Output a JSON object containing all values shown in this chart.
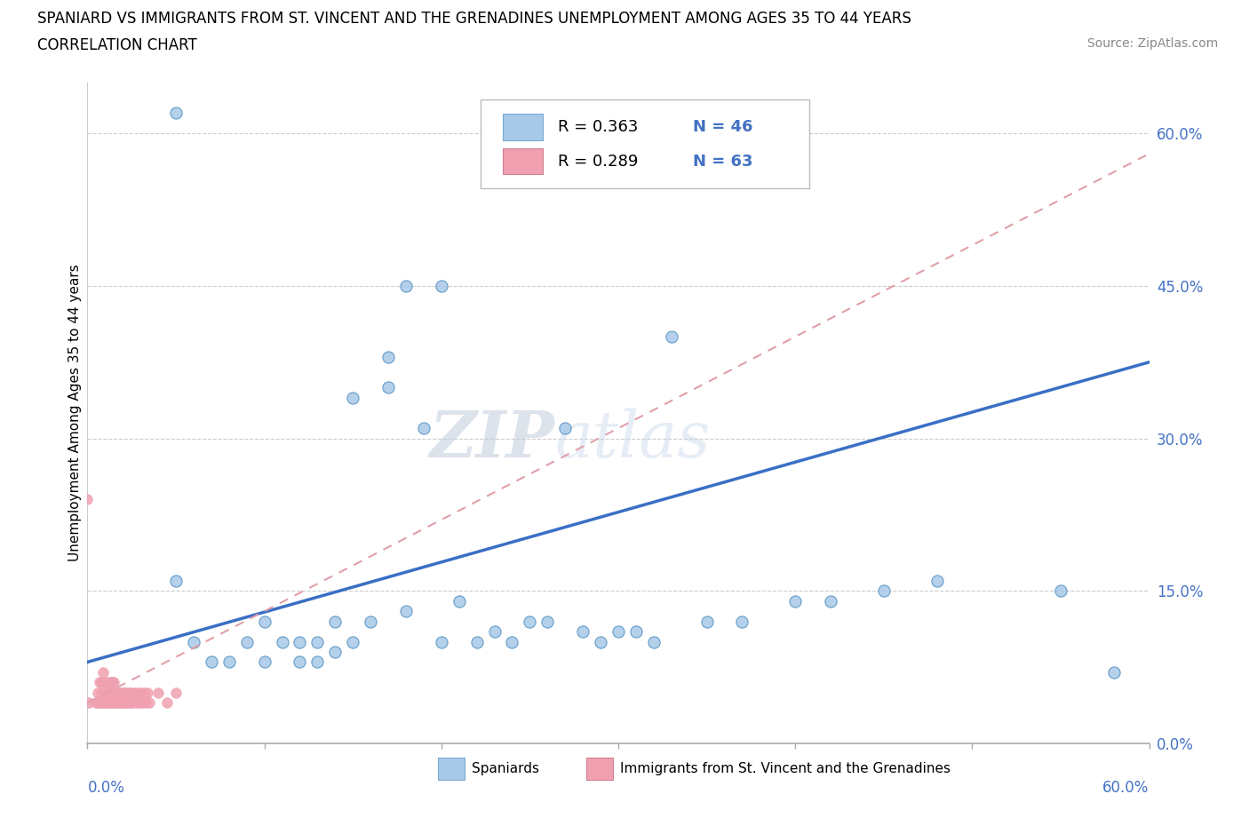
{
  "title_line1": "SPANIARD VS IMMIGRANTS FROM ST. VINCENT AND THE GRENADINES UNEMPLOYMENT AMONG AGES 35 TO 44 YEARS",
  "title_line2": "CORRELATION CHART",
  "source": "Source: ZipAtlas.com",
  "ylabel_label": "Unemployment Among Ages 35 to 44 years",
  "watermark_zip": "ZIP",
  "watermark_atlas": "atlas",
  "legend_R1": "R = 0.363",
  "legend_N1": "N = 46",
  "legend_R2": "R = 0.289",
  "legend_N2": "N = 63",
  "blue_color": "#A8C8E8",
  "pink_color": "#F0A0B0",
  "trendline_blue": "#3A6FC4",
  "trendline_pink_color": "#E0A0A8",
  "axis_label_color": "#4472C4",
  "blue_trendline_x0": 0.0,
  "blue_trendline_y0": 0.08,
  "blue_trendline_x1": 0.6,
  "blue_trendline_y1": 0.375,
  "pink_trendline_x0": 0.0,
  "pink_trendline_y0": 0.04,
  "pink_trendline_x1": 0.6,
  "pink_trendline_y1": 0.58,
  "spaniards_x": [
    0.05,
    0.05,
    0.06,
    0.07,
    0.08,
    0.09,
    0.1,
    0.1,
    0.11,
    0.12,
    0.12,
    0.13,
    0.13,
    0.14,
    0.14,
    0.15,
    0.15,
    0.16,
    0.17,
    0.17,
    0.18,
    0.18,
    0.19,
    0.2,
    0.2,
    0.21,
    0.22,
    0.23,
    0.24,
    0.25,
    0.26,
    0.27,
    0.28,
    0.29,
    0.3,
    0.31,
    0.32,
    0.33,
    0.35,
    0.37,
    0.4,
    0.42,
    0.45,
    0.48,
    0.55,
    0.58
  ],
  "spaniards_y": [
    0.62,
    0.16,
    0.1,
    0.08,
    0.08,
    0.1,
    0.08,
    0.12,
    0.1,
    0.1,
    0.08,
    0.08,
    0.1,
    0.09,
    0.12,
    0.1,
    0.34,
    0.12,
    0.35,
    0.38,
    0.13,
    0.45,
    0.31,
    0.1,
    0.45,
    0.14,
    0.1,
    0.11,
    0.1,
    0.12,
    0.12,
    0.31,
    0.11,
    0.1,
    0.11,
    0.11,
    0.1,
    0.4,
    0.12,
    0.12,
    0.14,
    0.14,
    0.15,
    0.16,
    0.15,
    0.07
  ],
  "immigrants_x": [
    0.005,
    0.006,
    0.006,
    0.007,
    0.007,
    0.008,
    0.008,
    0.008,
    0.009,
    0.009,
    0.01,
    0.01,
    0.01,
    0.011,
    0.011,
    0.012,
    0.012,
    0.012,
    0.013,
    0.013,
    0.013,
    0.014,
    0.014,
    0.014,
    0.015,
    0.015,
    0.015,
    0.016,
    0.016,
    0.017,
    0.017,
    0.018,
    0.018,
    0.019,
    0.019,
    0.02,
    0.02,
    0.021,
    0.021,
    0.022,
    0.022,
    0.023,
    0.023,
    0.024,
    0.024,
    0.025,
    0.025,
    0.026,
    0.027,
    0.028,
    0.029,
    0.03,
    0.03,
    0.031,
    0.032,
    0.033,
    0.034,
    0.035,
    0.04,
    0.045,
    0.05,
    0.0,
    0.001
  ],
  "immigrants_y": [
    0.04,
    0.04,
    0.05,
    0.04,
    0.06,
    0.05,
    0.04,
    0.06,
    0.04,
    0.07,
    0.04,
    0.05,
    0.06,
    0.04,
    0.05,
    0.04,
    0.05,
    0.06,
    0.04,
    0.05,
    0.06,
    0.04,
    0.05,
    0.06,
    0.04,
    0.05,
    0.06,
    0.04,
    0.05,
    0.04,
    0.05,
    0.04,
    0.05,
    0.04,
    0.05,
    0.04,
    0.05,
    0.04,
    0.05,
    0.04,
    0.05,
    0.04,
    0.05,
    0.04,
    0.05,
    0.04,
    0.05,
    0.04,
    0.05,
    0.04,
    0.05,
    0.04,
    0.05,
    0.04,
    0.05,
    0.04,
    0.05,
    0.04,
    0.05,
    0.04,
    0.05,
    0.24,
    0.04
  ],
  "yticks": [
    0.0,
    0.15,
    0.3,
    0.45,
    0.6
  ],
  "ytick_labels": [
    "0.0%",
    "15.0%",
    "30.0%",
    "45.0%",
    "60.0%"
  ],
  "xticks": [
    0.0,
    0.1,
    0.2,
    0.3,
    0.4,
    0.5,
    0.6
  ],
  "xmin": 0.0,
  "xmax": 0.6,
  "ymin": 0.0,
  "ymax": 0.65
}
